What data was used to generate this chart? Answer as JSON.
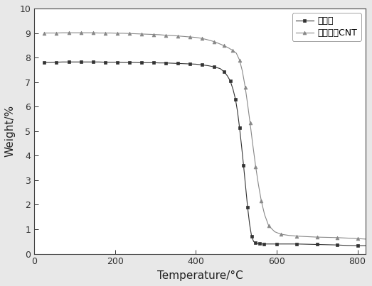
{
  "title": "",
  "xlabel": "Temperature/°C",
  "ylabel": "Weight/%",
  "xlim": [
    0,
    820
  ],
  "ylim": [
    0,
    10
  ],
  "xticks": [
    0,
    200,
    400,
    600,
    800
  ],
  "yticks": [
    0,
    1,
    2,
    3,
    4,
    5,
    6,
    7,
    8,
    9,
    10
  ],
  "legend1": "无填料",
  "legend2": "碳纳米罐CNT",
  "line1_color": "#333333",
  "line2_color": "#888888",
  "marker1": "s",
  "marker2": "^",
  "background_color": "#ffffff",
  "fig_background": "#e8e8e8",
  "line1_x": [
    25,
    40,
    55,
    70,
    85,
    100,
    115,
    130,
    145,
    160,
    175,
    190,
    205,
    220,
    235,
    250,
    265,
    280,
    295,
    310,
    325,
    340,
    355,
    370,
    385,
    400,
    415,
    430,
    445,
    460,
    470,
    478,
    485,
    492,
    498,
    503,
    508,
    513,
    518,
    523,
    528,
    533,
    538,
    543,
    548,
    553,
    558,
    563,
    568,
    580,
    600,
    625,
    650,
    675,
    700,
    725,
    750,
    775,
    800,
    820
  ],
  "line1_y": [
    7.8,
    7.8,
    7.81,
    7.82,
    7.82,
    7.82,
    7.82,
    7.82,
    7.82,
    7.82,
    7.81,
    7.81,
    7.81,
    7.8,
    7.8,
    7.8,
    7.79,
    7.79,
    7.79,
    7.78,
    7.78,
    7.77,
    7.76,
    7.75,
    7.74,
    7.73,
    7.7,
    7.67,
    7.62,
    7.55,
    7.42,
    7.25,
    7.05,
    6.7,
    6.3,
    5.8,
    5.15,
    4.4,
    3.6,
    2.75,
    1.9,
    1.2,
    0.7,
    0.5,
    0.44,
    0.42,
    0.41,
    0.4,
    0.4,
    0.4,
    0.4,
    0.4,
    0.4,
    0.39,
    0.38,
    0.37,
    0.36,
    0.34,
    0.33,
    0.33
  ],
  "line2_x": [
    25,
    40,
    55,
    70,
    85,
    100,
    115,
    130,
    145,
    160,
    175,
    190,
    205,
    220,
    235,
    250,
    265,
    280,
    295,
    310,
    325,
    340,
    355,
    370,
    385,
    400,
    415,
    430,
    445,
    460,
    470,
    480,
    490,
    500,
    508,
    515,
    522,
    528,
    534,
    540,
    548,
    555,
    562,
    570,
    580,
    595,
    610,
    630,
    650,
    675,
    700,
    725,
    750,
    775,
    800,
    820
  ],
  "line2_y": [
    9.0,
    9.0,
    9.0,
    9.01,
    9.01,
    9.01,
    9.01,
    9.01,
    9.01,
    9.0,
    9.0,
    9.0,
    8.99,
    8.99,
    8.98,
    8.97,
    8.96,
    8.95,
    8.94,
    8.93,
    8.91,
    8.9,
    8.88,
    8.86,
    8.84,
    8.82,
    8.78,
    8.72,
    8.65,
    8.55,
    8.48,
    8.4,
    8.3,
    8.18,
    7.9,
    7.45,
    6.8,
    6.1,
    5.35,
    4.55,
    3.55,
    2.8,
    2.15,
    1.6,
    1.15,
    0.9,
    0.8,
    0.75,
    0.72,
    0.7,
    0.68,
    0.67,
    0.66,
    0.64,
    0.62,
    0.6
  ]
}
